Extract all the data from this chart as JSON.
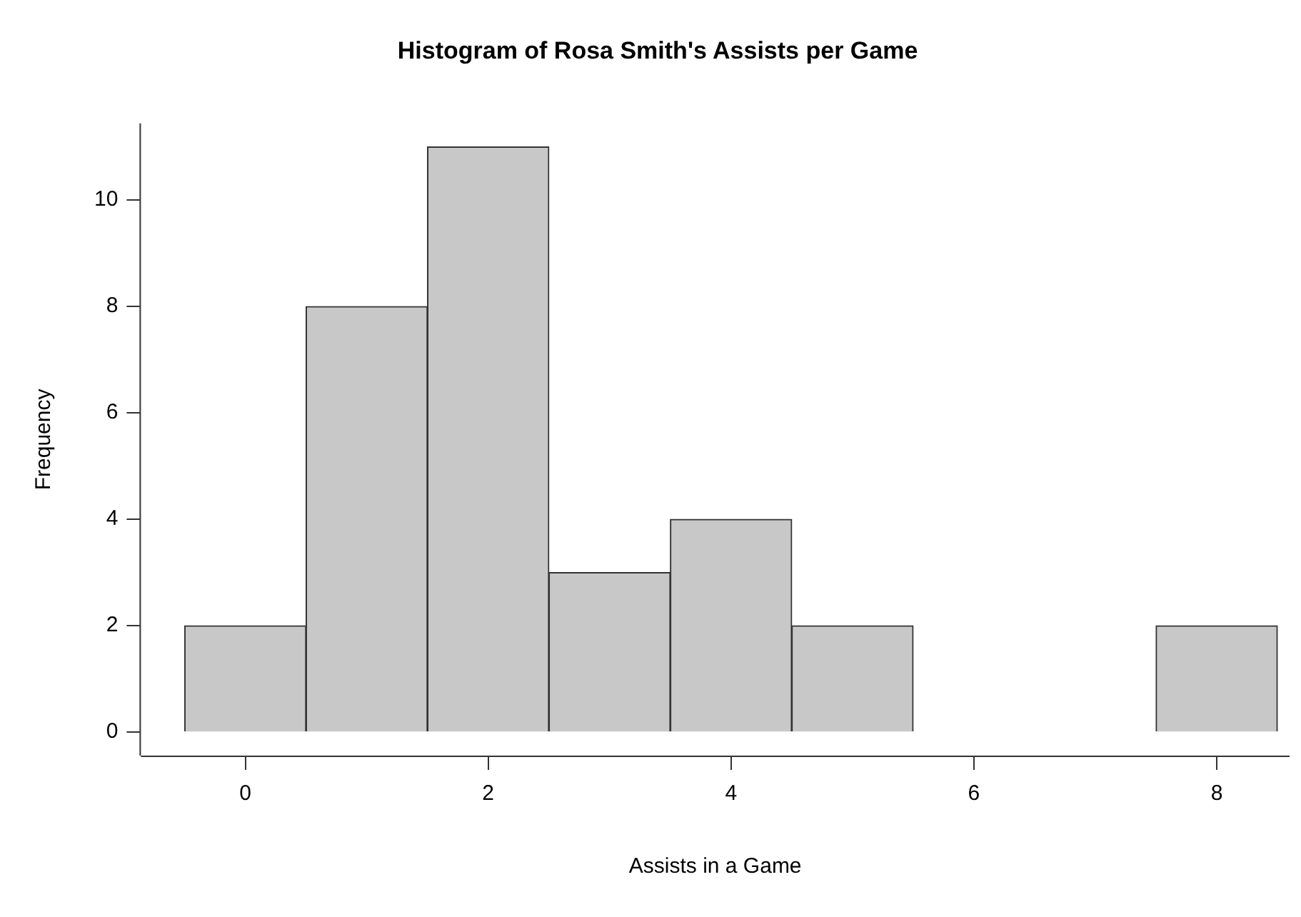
{
  "chart_data": {
    "type": "histogram",
    "title": "Histogram of Rosa Smith's Assists per Game",
    "xlabel": "Assists in a Game",
    "ylabel": "Frequency",
    "bins": [
      -0.5,
      0.5,
      1.5,
      2.5,
      3.5,
      4.5,
      5.5,
      6.5,
      7.5,
      8.5
    ],
    "values": [
      2,
      8,
      11,
      3,
      4,
      2,
      0,
      0,
      2
    ],
    "color": "#c8c8c8",
    "xlim": [
      -0.86,
      8.6
    ],
    "ylim": [
      -0.44,
      11.44
    ],
    "xticks": [
      0,
      2,
      4,
      6,
      8
    ],
    "yticks": [
      0,
      2,
      4,
      6,
      8,
      10
    ],
    "legend": false
  }
}
